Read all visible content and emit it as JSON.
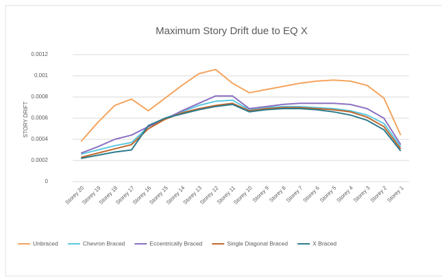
{
  "chart_data": {
    "type": "line",
    "title": "Maximum Story Drift due to EQ X",
    "y_label": "STORY DRIFT",
    "categories": [
      "Storey 20",
      "Storey 19",
      "Storey 18",
      "Storey 17",
      "Storey 16",
      "Storey 15",
      "Storey 14",
      "Storey 13",
      "Storey 12",
      "Storey 11",
      "Storey 10",
      "Storey 9",
      "Storey 8",
      "Storey 7",
      "Storey 6",
      "Storey 5",
      "Storey 4",
      "Storey 3",
      "Storey 2",
      "Storey 1"
    ],
    "series": [
      {
        "name": "Unbraced",
        "color": "#f5a35c",
        "values": [
          0.00038,
          0.00056,
          0.00072,
          0.00078,
          0.00067,
          0.00079,
          0.00091,
          0.00102,
          0.00106,
          0.00093,
          0.00084,
          0.00087,
          0.0009,
          0.00093,
          0.00095,
          0.00096,
          0.00095,
          0.00091,
          0.00079,
          0.00044
        ]
      },
      {
        "name": "Chevron Braced",
        "color": "#5bc8e0",
        "values": [
          0.00026,
          0.0003,
          0.00034,
          0.00037,
          0.00052,
          0.0006,
          0.00066,
          0.00072,
          0.00076,
          0.00077,
          0.00068,
          0.0007,
          0.00071,
          0.00071,
          0.0007,
          0.00069,
          0.00067,
          0.00063,
          0.00055,
          0.00033
        ]
      },
      {
        "name": "Eccentrically Braced",
        "color": "#8a6fc1",
        "values": [
          0.00027,
          0.00033,
          0.0004,
          0.00044,
          0.00052,
          0.00059,
          0.00067,
          0.00074,
          0.00081,
          0.00081,
          0.00069,
          0.00071,
          0.00073,
          0.00074,
          0.00074,
          0.00074,
          0.00073,
          0.00069,
          0.0006,
          0.00035
        ]
      },
      {
        "name": "Single Diagonal Braced",
        "color": "#c0662a",
        "values": [
          0.00023,
          0.00027,
          0.00031,
          0.00035,
          0.0005,
          0.00059,
          0.00065,
          0.00069,
          0.00072,
          0.00074,
          0.00067,
          0.00069,
          0.0007,
          0.0007,
          0.00069,
          0.00068,
          0.00066,
          0.00061,
          0.00052,
          0.00031
        ]
      },
      {
        "name": "X Braced",
        "color": "#2b7a8c",
        "values": [
          0.00022,
          0.00025,
          0.00028,
          0.0003,
          0.00053,
          0.0006,
          0.00064,
          0.00068,
          0.00071,
          0.00073,
          0.00066,
          0.00068,
          0.00069,
          0.00069,
          0.00068,
          0.00066,
          0.00063,
          0.00058,
          0.00049,
          0.00029
        ]
      }
    ],
    "ylim": [
      0,
      0.0012
    ],
    "yticks": [
      0,
      0.0002,
      0.0004,
      0.0006,
      0.0008,
      0.001,
      0.0012
    ],
    "grid": true,
    "legend": "bottom"
  }
}
